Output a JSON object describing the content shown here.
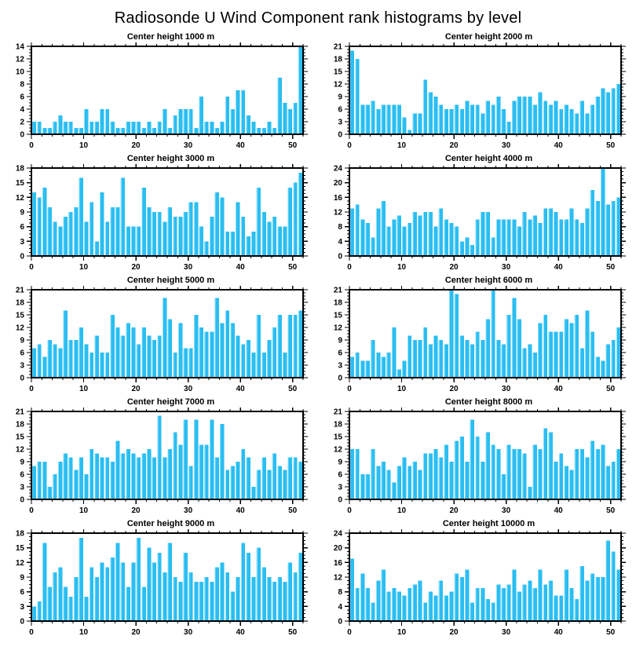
{
  "page": {
    "title": "Radiosonde U Wind Component rank histograms by level"
  },
  "colors": {
    "bar": "#2ABEF2",
    "bar_highlight": "#8EDCF8",
    "axis": "#000000",
    "background": "#FFFFFF",
    "text": "#000000"
  },
  "chart_data": [
    {
      "type": "bar",
      "title": "Center height 1000 m",
      "ylim": [
        0,
        14
      ],
      "ytick_step": 2,
      "xlim": [
        0,
        52
      ],
      "xticks": [
        0,
        10,
        20,
        30,
        40,
        50
      ],
      "xminor_step": 2,
      "values": [
        2,
        2,
        1,
        1,
        2,
        3,
        2,
        2,
        1,
        1,
        4,
        2,
        2,
        4,
        4,
        2,
        1,
        1,
        2,
        2,
        2,
        1,
        2,
        1,
        2,
        4,
        1,
        3,
        4,
        4,
        4,
        1,
        6,
        2,
        2,
        1,
        2,
        6,
        4,
        7,
        7,
        3,
        2,
        1,
        1,
        2,
        1,
        9,
        5,
        4,
        5,
        14
      ]
    },
    {
      "type": "bar",
      "title": "Center height 2000 m",
      "ylim": [
        0,
        21
      ],
      "ytick_step": 3,
      "xlim": [
        0,
        52
      ],
      "xticks": [
        0,
        10,
        20,
        30,
        40,
        50
      ],
      "xminor_step": 2,
      "values": [
        20,
        18,
        7,
        7,
        8,
        6,
        7,
        7,
        7,
        7,
        4,
        1,
        5,
        5,
        13,
        10,
        9,
        7,
        6,
        6,
        7,
        6,
        8,
        7,
        7,
        5,
        8,
        7,
        9,
        6,
        3,
        8,
        9,
        9,
        9,
        7,
        10,
        8,
        7,
        8,
        6,
        7,
        6,
        5,
        8,
        5,
        7,
        9,
        11,
        10,
        11,
        12
      ]
    },
    {
      "type": "bar",
      "title": "Center height 3000 m",
      "ylim": [
        0,
        18
      ],
      "ytick_step": 3,
      "xlim": [
        0,
        52
      ],
      "xticks": [
        0,
        10,
        20,
        30,
        40,
        50
      ],
      "xminor_step": 2,
      "values": [
        13,
        12,
        14,
        10,
        7,
        6,
        8,
        9,
        10,
        16,
        7,
        11,
        3,
        13,
        7,
        10,
        10,
        16,
        6,
        6,
        6,
        14,
        10,
        9,
        9,
        7,
        10,
        8,
        8,
        9,
        11,
        11,
        6,
        3,
        8,
        13,
        12,
        5,
        5,
        11,
        8,
        4,
        5,
        14,
        9,
        7,
        8,
        6,
        6,
        14,
        15,
        17
      ]
    },
    {
      "type": "bar",
      "title": "Center height 4000 m",
      "ylim": [
        0,
        24
      ],
      "ytick_step": 4,
      "xlim": [
        0,
        52
      ],
      "xticks": [
        0,
        10,
        20,
        30,
        40,
        50
      ],
      "xminor_step": 2,
      "values": [
        13,
        14,
        10,
        9,
        5,
        13,
        15,
        8,
        10,
        11,
        8,
        9,
        12,
        11,
        12,
        12,
        8,
        13,
        10,
        9,
        8,
        4,
        5,
        3,
        10,
        12,
        12,
        5,
        10,
        10,
        10,
        10,
        8,
        12,
        10,
        11,
        9,
        13,
        13,
        12,
        10,
        10,
        13,
        10,
        9,
        13,
        18,
        15,
        24,
        14,
        15,
        16
      ]
    },
    {
      "type": "bar",
      "title": "Center height 5000 m",
      "ylim": [
        0,
        21
      ],
      "ytick_step": 3,
      "xlim": [
        0,
        52
      ],
      "xticks": [
        0,
        10,
        20,
        30,
        40,
        50
      ],
      "xminor_step": 2,
      "values": [
        7,
        8,
        5,
        9,
        8,
        7,
        16,
        9,
        9,
        12,
        8,
        6,
        10,
        6,
        6,
        15,
        12,
        10,
        13,
        12,
        8,
        12,
        10,
        9,
        10,
        19,
        14,
        6,
        13,
        7,
        7,
        15,
        12,
        11,
        11,
        19,
        13,
        16,
        13,
        10,
        8,
        9,
        6,
        15,
        6,
        9,
        12,
        15,
        6,
        15,
        15,
        16
      ]
    },
    {
      "type": "bar",
      "title": "Center height 6000 m",
      "ylim": [
        0,
        21
      ],
      "ytick_step": 3,
      "xlim": [
        0,
        52
      ],
      "xticks": [
        0,
        10,
        20,
        30,
        40,
        50
      ],
      "xminor_step": 2,
      "values": [
        5,
        6,
        4,
        4,
        9,
        6,
        5,
        6,
        12,
        2,
        4,
        10,
        9,
        9,
        12,
        8,
        10,
        9,
        8,
        21,
        20,
        10,
        9,
        8,
        11,
        9,
        14,
        21,
        9,
        8,
        15,
        19,
        14,
        7,
        8,
        6,
        13,
        15,
        11,
        11,
        11,
        14,
        13,
        15,
        7,
        16,
        11,
        5,
        4,
        8,
        9,
        12
      ]
    },
    {
      "type": "bar",
      "title": "Center height 7000 m",
      "ylim": [
        0,
        21
      ],
      "ytick_step": 3,
      "xlim": [
        0,
        52
      ],
      "xticks": [
        0,
        10,
        20,
        30,
        40,
        50
      ],
      "xminor_step": 2,
      "values": [
        8,
        9,
        9,
        3,
        6,
        9,
        11,
        10,
        7,
        10,
        6,
        12,
        11,
        10,
        10,
        9,
        14,
        11,
        12,
        11,
        10,
        11,
        12,
        10,
        20,
        10,
        12,
        16,
        13,
        19,
        8,
        19,
        13,
        13,
        19,
        10,
        18,
        7,
        8,
        9,
        12,
        10,
        3,
        7,
        10,
        7,
        11,
        8,
        7,
        10,
        10,
        9
      ]
    },
    {
      "type": "bar",
      "title": "Center height 8000 m",
      "ylim": [
        0,
        21
      ],
      "ytick_step": 3,
      "xlim": [
        0,
        52
      ],
      "xticks": [
        0,
        10,
        20,
        30,
        40,
        50
      ],
      "xminor_step": 2,
      "values": [
        12,
        12,
        6,
        6,
        12,
        8,
        9,
        7,
        4,
        8,
        10,
        8,
        9,
        7,
        11,
        11,
        12,
        10,
        13,
        9,
        14,
        15,
        9,
        19,
        15,
        9,
        16,
        13,
        12,
        6,
        13,
        12,
        12,
        11,
        3,
        13,
        12,
        17,
        16,
        9,
        11,
        8,
        7,
        12,
        12,
        10,
        14,
        12,
        13,
        8,
        9,
        12
      ]
    },
    {
      "type": "bar",
      "title": "Center height 9000 m",
      "ylim": [
        0,
        18
      ],
      "ytick_step": 3,
      "xlim": [
        0,
        52
      ],
      "xticks": [
        0,
        10,
        20,
        30,
        40,
        50
      ],
      "xminor_step": 2,
      "values": [
        3,
        4,
        16,
        7,
        10,
        11,
        7,
        5,
        9,
        17,
        5,
        11,
        9,
        12,
        11,
        13,
        16,
        12,
        7,
        12,
        17,
        7,
        15,
        12,
        14,
        10,
        16,
        9,
        8,
        14,
        10,
        8,
        8,
        9,
        8,
        11,
        12,
        10,
        6,
        9,
        16,
        14,
        9,
        15,
        11,
        9,
        8,
        9,
        8,
        12,
        10,
        14
      ]
    },
    {
      "type": "bar",
      "title": "Center height 10000 m",
      "ylim": [
        0,
        24
      ],
      "ytick_step": 4,
      "xlim": [
        0,
        52
      ],
      "xticks": [
        0,
        10,
        20,
        30,
        40,
        50
      ],
      "xminor_step": 2,
      "values": [
        17,
        9,
        13,
        9,
        5,
        11,
        14,
        8,
        9,
        8,
        7,
        9,
        10,
        11,
        5,
        8,
        7,
        11,
        7,
        8,
        13,
        12,
        14,
        5,
        9,
        9,
        6,
        5,
        10,
        9,
        10,
        14,
        8,
        10,
        11,
        9,
        14,
        10,
        11,
        7,
        7,
        14,
        9,
        6,
        15,
        11,
        13,
        12,
        12,
        22,
        19,
        14
      ]
    }
  ]
}
